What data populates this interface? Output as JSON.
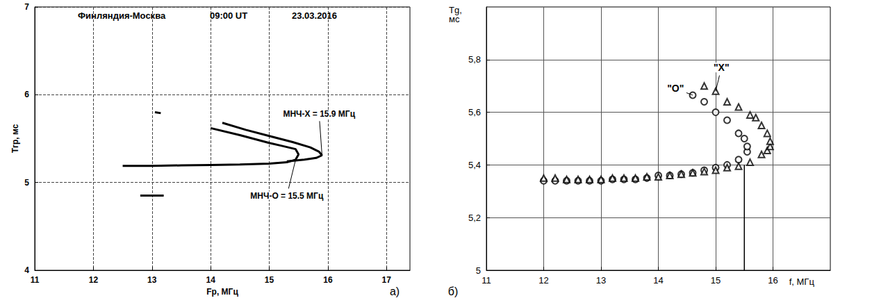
{
  "chart_data": [
    {
      "type": "line",
      "title": "Финляндия-Москва",
      "time": "09:00 UT",
      "date": "23.03.2016",
      "panel_label": "a)",
      "x_label": "Fр, МГц",
      "y_label": "Tгр, мс",
      "xlim": [
        11,
        17.4
      ],
      "xticks": [
        11,
        12,
        13,
        14,
        15,
        16,
        17
      ],
      "ylim": [
        4,
        7
      ],
      "yticks": [
        4,
        5,
        6,
        7
      ],
      "grid": true,
      "series": [
        {
          "color": "#000000",
          "x": [
            12.5,
            13,
            13.5,
            14,
            14.5,
            15,
            15.3,
            15.45,
            15.5,
            15.45,
            15.2,
            15,
            14.5,
            14
          ],
          "values": [
            5.19,
            5.19,
            5.195,
            5.2,
            5.205,
            5.215,
            5.23,
            5.26,
            5.32,
            5.38,
            5.42,
            5.45,
            5.54,
            5.62
          ]
        },
        {
          "color": "#000000",
          "x": [
            15.3,
            15.6,
            15.8,
            15.9,
            15.85,
            15.7,
            15.4,
            15,
            14.6,
            14.2
          ],
          "values": [
            5.24,
            5.26,
            5.28,
            5.31,
            5.35,
            5.4,
            5.46,
            5.53,
            5.6,
            5.68
          ]
        },
        {
          "color": "#000000",
          "x": [
            12.8,
            13.2
          ],
          "values": [
            4.85,
            4.85
          ]
        },
        {
          "color": "#000000",
          "x": [
            13.05,
            13.15
          ],
          "values": [
            5.8,
            5.79
          ]
        }
      ],
      "annotations": [
        {
          "text": "МНЧ-X = 15.9 МГц",
          "x": 15.85,
          "y": 5.78,
          "arrow_to": [
            15.9,
            5.31
          ]
        },
        {
          "text": "МНЧ-O = 15.5 МГц",
          "x": 15.3,
          "y": 4.85,
          "arrow_to": [
            15.45,
            5.26
          ]
        }
      ]
    },
    {
      "type": "scatter",
      "panel_label": "б)",
      "x_label": "f, МГц",
      "y_label": "Tg, мс",
      "xlim": [
        11,
        17
      ],
      "xticks": [
        11,
        12,
        13,
        14,
        15,
        16
      ],
      "ylim": [
        5,
        6
      ],
      "yticks": [
        5,
        {
          "value": 5.2,
          "label": "5,2"
        },
        {
          "value": 5.4,
          "label": "5,4"
        },
        {
          "value": 5.6,
          "label": "5,6"
        },
        {
          "value": 5.8,
          "label": "5,8"
        }
      ],
      "grid": true,
      "series": [
        {
          "marker": "circle",
          "color": "#000000",
          "x": [
            12,
            12.2,
            12.4,
            12.6,
            12.8,
            13,
            13.2,
            13.4,
            13.6,
            13.8,
            14,
            14.2,
            14.4,
            14.6,
            14.8,
            15,
            15.2,
            15.4,
            15.55,
            15.55,
            15.5,
            15.4,
            15.2,
            15,
            14.8,
            14.6
          ],
          "values": [
            5.34,
            5.34,
            5.34,
            5.34,
            5.34,
            5.34,
            5.345,
            5.345,
            5.345,
            5.35,
            5.36,
            5.36,
            5.365,
            5.37,
            5.38,
            5.39,
            5.4,
            5.42,
            5.45,
            5.47,
            5.5,
            5.52,
            5.57,
            5.6,
            5.64,
            5.665
          ]
        },
        {
          "marker": "triangle",
          "color": "#000000",
          "x": [
            12,
            12.2,
            12.4,
            12.6,
            12.8,
            13,
            13.2,
            13.4,
            13.6,
            13.8,
            14,
            14.2,
            14.4,
            14.6,
            14.8,
            15,
            15.2,
            15.4,
            15.6,
            15.8,
            15.9,
            15.95,
            15.95,
            15.9,
            15.8,
            15.7,
            15.6,
            15.4,
            15.2,
            15,
            14.8
          ],
          "values": [
            5.35,
            5.35,
            5.345,
            5.345,
            5.345,
            5.345,
            5.35,
            5.35,
            5.35,
            5.355,
            5.355,
            5.36,
            5.365,
            5.37,
            5.375,
            5.38,
            5.39,
            5.395,
            5.41,
            5.44,
            5.455,
            5.47,
            5.49,
            5.52,
            5.55,
            5.58,
            5.59,
            5.62,
            5.64,
            5.68,
            5.7
          ]
        },
        {
          "type": "line",
          "line_style": "solid",
          "color": "#000000",
          "x": [
            15.5,
            15.5
          ],
          "values": [
            5,
            5.4
          ]
        }
      ],
      "annotations": [
        {
          "text": "\"O\"",
          "x": 14.3,
          "y": 5.69,
          "arrow_to": [
            14.6,
            5.665
          ]
        },
        {
          "text": "\"X\"",
          "x": 15.1,
          "y": 5.77,
          "arrow_to": [
            15.0,
            5.68
          ]
        }
      ]
    }
  ]
}
